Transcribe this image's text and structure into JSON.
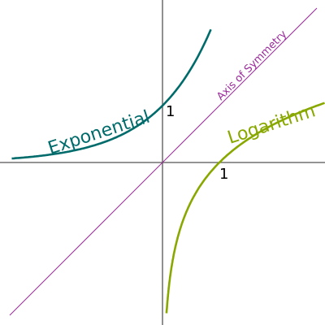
{
  "labels": {
    "exponential": "Exponential",
    "logarithm": "Logarithm",
    "symmetry": "Axis of Symmetry",
    "exp_intercept": "1",
    "log_intercept": "1"
  },
  "colors": {
    "exponential": "#006b6b",
    "logarithm": "#88a800",
    "symmetry": "#9b2a9b",
    "axes": "#555555",
    "text": "#000000"
  },
  "functions": {
    "exponential": "e^x",
    "logarithm": "ln(x)",
    "symmetry": "y = x"
  }
}
